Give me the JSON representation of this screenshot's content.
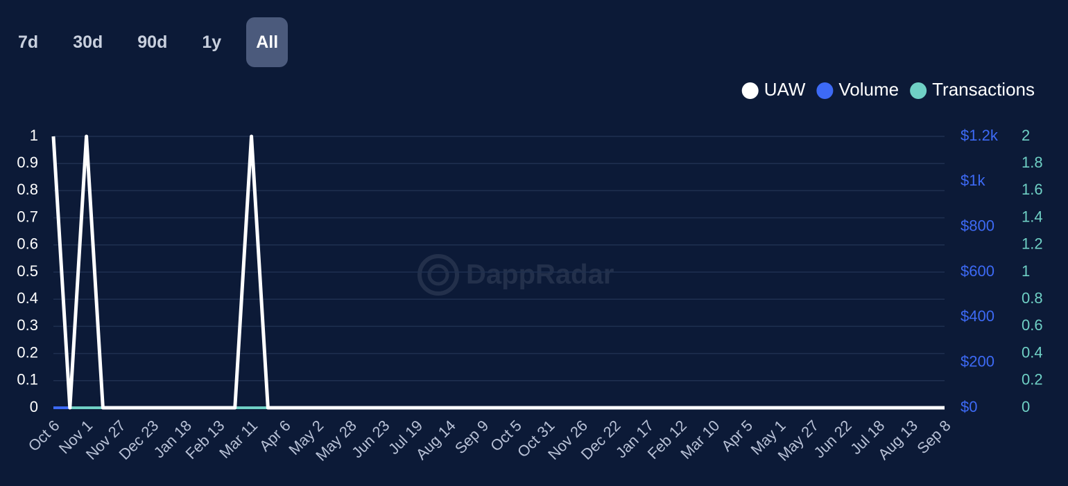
{
  "range_buttons": [
    {
      "label": "7d"
    },
    {
      "label": "30d"
    },
    {
      "label": "90d"
    },
    {
      "label": "1y"
    },
    {
      "label": "All",
      "selected": true
    }
  ],
  "watermark": "DappRadar",
  "chart_data": {
    "type": "line",
    "categories": [
      "Oct 6",
      null,
      "Nov 1",
      null,
      "Nov 27",
      null,
      "Dec 23",
      null,
      "Jan 18",
      null,
      "Feb 13",
      null,
      "Mar 11",
      null,
      "Apr 6",
      null,
      "May 2",
      null,
      "May 28",
      null,
      "Jun 23",
      null,
      "Jul 19",
      null,
      "Aug 14",
      null,
      "Sep 9",
      null,
      "Oct 5",
      null,
      "Oct 31",
      null,
      "Nov 26",
      null,
      "Dec 22",
      null,
      "Jan 17",
      null,
      "Feb 12",
      null,
      "Mar 10",
      null,
      "Apr 5",
      null,
      "May 1",
      null,
      "May 27",
      null,
      "Jun 22",
      null,
      "Jul 18",
      null,
      "Aug 13",
      null,
      "Sep 8"
    ],
    "series": [
      {
        "name": "Volume",
        "color": "#3d6af5",
        "axis": "y2",
        "values": [
          0,
          0,
          0,
          0,
          0,
          0,
          0,
          0,
          0,
          0,
          0,
          0,
          0,
          0,
          0,
          0,
          0,
          0,
          0,
          0,
          0,
          0,
          0,
          0,
          0,
          0,
          0,
          0,
          0,
          0,
          0,
          0,
          0,
          0,
          0,
          0,
          0,
          0,
          0,
          0,
          0,
          0,
          0,
          0,
          0,
          0,
          0,
          0,
          0,
          0,
          0,
          0,
          0,
          0,
          0
        ]
      },
      {
        "name": "Transactions",
        "color": "#6fd0c5",
        "axis": "y3",
        "values": [
          2,
          0,
          0,
          0,
          0,
          0,
          0,
          0,
          0,
          0,
          0,
          0,
          0,
          0,
          0,
          0,
          0,
          0,
          0,
          0,
          0,
          0,
          0,
          0,
          0,
          0,
          0,
          0,
          0,
          0,
          0,
          0,
          0,
          0,
          0,
          0,
          0,
          0,
          0,
          0,
          0,
          0,
          0,
          0,
          0,
          0,
          0,
          0,
          0,
          0,
          0,
          0,
          0,
          0,
          0
        ]
      },
      {
        "name": "UAW",
        "color": "#ffffff",
        "axis": "y",
        "values": [
          1,
          0,
          1,
          0,
          0,
          0,
          0,
          0,
          0,
          0,
          0,
          0,
          1,
          0,
          0,
          0,
          0,
          0,
          0,
          0,
          0,
          0,
          0,
          0,
          0,
          0,
          0,
          0,
          0,
          0,
          0,
          0,
          0,
          0,
          0,
          0,
          0,
          0,
          0,
          0,
          0,
          0,
          0,
          0,
          0,
          0,
          0,
          0,
          0,
          0,
          0,
          0,
          0,
          0,
          0
        ]
      }
    ],
    "legend_order": [
      "UAW",
      "Volume",
      "Transactions"
    ],
    "ylim": [
      0,
      1
    ],
    "yticks": [
      0,
      0.1,
      0.2,
      0.3,
      0.4,
      0.5,
      0.6,
      0.7,
      0.8,
      0.9,
      1
    ],
    "y2lim": [
      0,
      1200
    ],
    "y2ticks": [
      {
        "value": 0,
        "label": "$0"
      },
      {
        "value": 200,
        "label": "$200"
      },
      {
        "value": 400,
        "label": "$400"
      },
      {
        "value": 600,
        "label": "$600"
      },
      {
        "value": 800,
        "label": "$800"
      },
      {
        "value": 1000,
        "label": "$1k"
      },
      {
        "value": 1200,
        "label": "$1.2k"
      }
    ],
    "y3lim": [
      0,
      2
    ],
    "y3ticks": [
      0,
      0.2,
      0.4,
      0.6,
      0.8,
      1,
      1.2,
      1.4,
      1.6,
      1.8,
      2
    ],
    "grid": true,
    "legend_position": "top-right"
  }
}
